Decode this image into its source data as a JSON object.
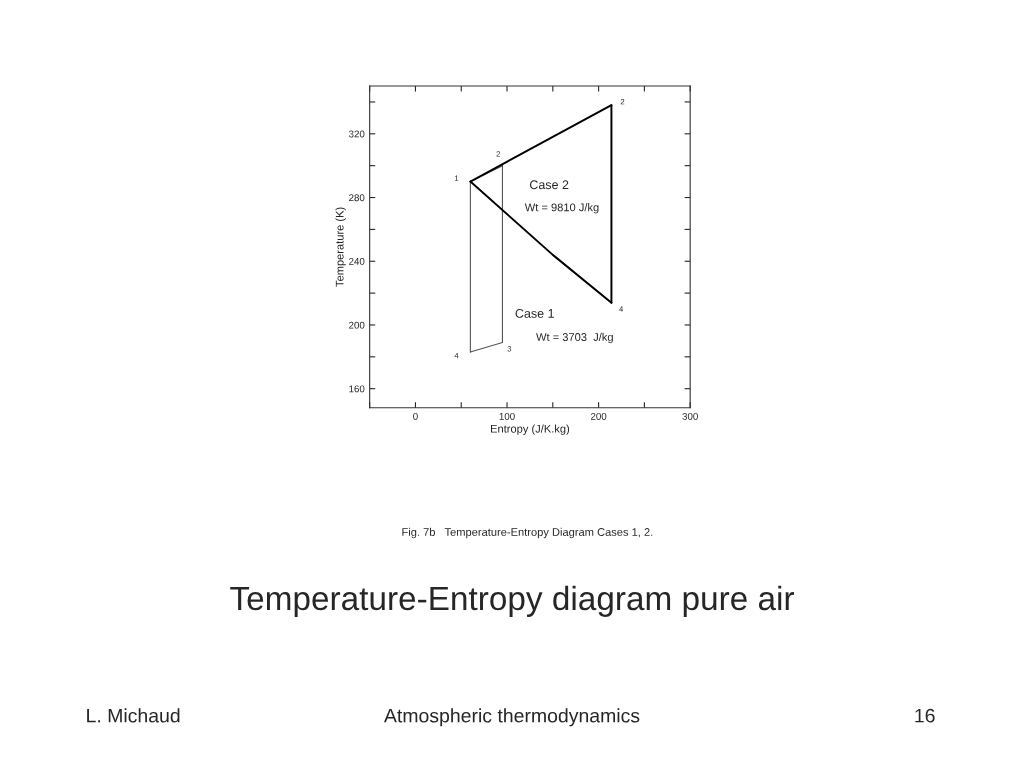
{
  "chart_data": {
    "type": "line",
    "title": "Temperature-Entropy diagram pure air",
    "xlabel": "Entropy (J/K.kg)",
    "ylabel": "Temperature (K)",
    "xlim": [
      -50,
      300
    ],
    "xticks": [
      {
        "value": -50,
        "label": null
      },
      0,
      {
        "value": 50,
        "label": null
      },
      100,
      {
        "value": 150,
        "label": null
      },
      200,
      {
        "value": 250,
        "label": null
      },
      300
    ],
    "ylim": [
      148,
      350
    ],
    "yticks": [
      160,
      {
        "value": 180,
        "label": null
      },
      200,
      {
        "value": 220,
        "label": null
      },
      240,
      {
        "value": 260,
        "label": null
      },
      280,
      {
        "value": 300,
        "label": null
      },
      320,
      {
        "value": 340,
        "label": null
      }
    ],
    "grid": false,
    "marker": "none",
    "line_style": "solid",
    "series": [
      {
        "color": "#555555",
        "x": [
          60,
          95
        ],
        "values": [
          290,
          300
        ]
      },
      {
        "color": "#555555",
        "x": [
          95,
          95
        ],
        "values": [
          300,
          189
        ]
      },
      {
        "color": "#555555",
        "x": [
          60,
          95
        ],
        "values": [
          183,
          189
        ]
      },
      {
        "color": "#555555",
        "x": [
          60,
          60
        ],
        "values": [
          183,
          290
        ]
      },
      {
        "color": "#000000",
        "x": [
          60,
          214
        ],
        "values": [
          290,
          338
        ]
      },
      {
        "color": "#000000",
        "x": [
          214,
          214
        ],
        "values": [
          338,
          214
        ]
      },
      {
        "color": "#000000",
        "x": [
          60,
          150,
          214
        ],
        "values": [
          290,
          244,
          214
        ]
      }
    ],
    "annotations": [
      {
        "text": "1",
        "x": 60,
        "y": 290
      },
      {
        "text": "2",
        "x": 95,
        "y": 300
      },
      {
        "text": "3",
        "x": 95,
        "y": 189
      },
      {
        "text": "4",
        "x": 60,
        "y": 183
      },
      {
        "text": "2",
        "x": 214,
        "y": 338
      },
      {
        "text": "4",
        "x": 214,
        "y": 214
      },
      "Case 2",
      "Wt = 9810 J/kg",
      "Case 1",
      "Wt = 3703  J/kg",
      "Fig. 7b   Temperature-Entropy Diagram Cases 1, 2.",
      "L. Michaud",
      "Atmospheric thermodynamics",
      "16"
    ]
  }
}
